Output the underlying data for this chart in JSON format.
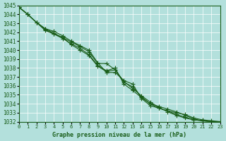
{
  "title": "Graphe pression niveau de la mer (hPa)",
  "bg_color": "#b3e0dc",
  "grid_color": "#ffffff",
  "line_color": "#1a5e1a",
  "marker_color": "#1a5e1a",
  "x_min": 0,
  "x_max": 23,
  "y_min": 1032,
  "y_max": 1045,
  "hours": [
    0,
    1,
    2,
    3,
    4,
    5,
    6,
    7,
    8,
    9,
    10,
    11,
    12,
    13,
    14,
    15,
    16,
    17,
    18,
    19,
    20,
    21,
    22,
    23
  ],
  "line1": [
    1044.8,
    1044.0,
    1043.1,
    1042.4,
    1042.1,
    1041.6,
    1041.0,
    1040.5,
    1040.0,
    1038.6,
    1037.5,
    1037.5,
    1036.6,
    1036.2,
    1034.6,
    1033.8,
    1033.5,
    1033.2,
    1033.0,
    1032.8,
    1032.4,
    1032.2,
    1032.1,
    1032.0
  ],
  "line2": [
    1044.8,
    1044.0,
    1043.1,
    1042.2,
    1041.8,
    1041.3,
    1040.7,
    1040.2,
    1039.5,
    1038.3,
    1037.7,
    1038.0,
    1036.2,
    1035.5,
    1034.7,
    1034.0,
    1033.7,
    1033.4,
    1033.1,
    1032.7,
    1032.3,
    1032.1,
    1032.0,
    1031.9
  ],
  "line3": [
    1044.8,
    1044.0,
    1043.1,
    1042.4,
    1041.9,
    1041.4,
    1040.9,
    1040.4,
    1039.8,
    1038.5,
    1038.5,
    1037.8,
    1036.5,
    1035.7,
    1034.9,
    1034.2,
    1033.6,
    1033.1,
    1032.7,
    1032.4,
    1032.2,
    1032.1,
    1032.0,
    1032.0
  ],
  "line4": [
    1044.8,
    1044.0,
    1043.1,
    1042.3,
    1041.8,
    1041.4,
    1040.6,
    1040.0,
    1039.4,
    1038.2,
    1037.6,
    1037.8,
    1036.4,
    1035.9,
    1034.8,
    1034.0,
    1033.5,
    1033.2,
    1032.8,
    1032.5,
    1032.2,
    1032.1,
    1032.0,
    1031.9
  ]
}
